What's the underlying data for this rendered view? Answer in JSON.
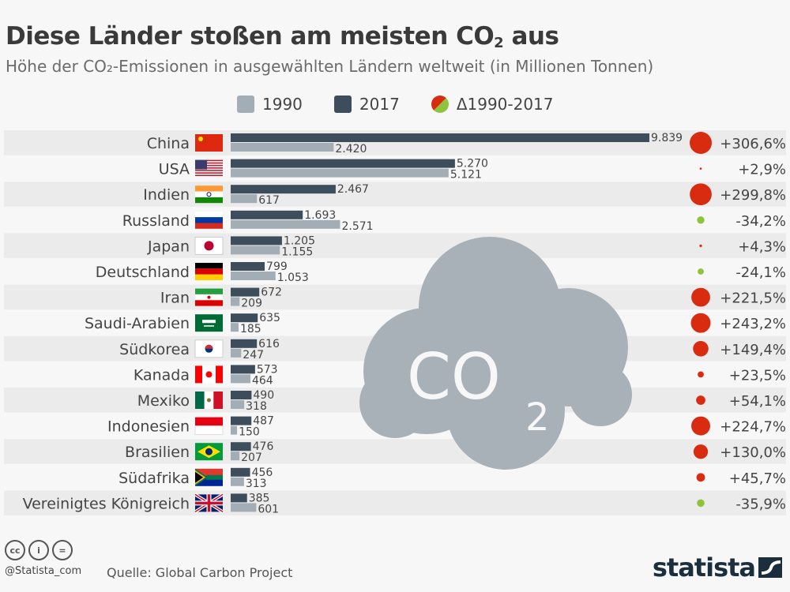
{
  "header": {
    "title_main": "Diese Länder stoßen am meisten CO",
    "title_sub": "2",
    "title_end": " aus",
    "subtitle": "Höhe der CO₂-Emissionen in ausgewählten Ländern weltweit (in Millionen Tonnen)"
  },
  "colors": {
    "y1990": "#a3adb6",
    "y2017": "#3d4d5c",
    "increase": "#d92b10",
    "decrease": "#8dc43c",
    "row_shade": "#ebebeb",
    "cloud": "#a8b0b8"
  },
  "cloud_label": {
    "main": "CO",
    "sub": "2"
  },
  "chart_data": {
    "type": "bar",
    "orientation": "horizontal",
    "legend": [
      "1990",
      "2017",
      "Δ1990-2017"
    ],
    "legend_placement": "top",
    "categories": [
      "China",
      "USA",
      "Indien",
      "Russland",
      "Japan",
      "Deutschland",
      "Iran",
      "Saudi-Arabien",
      "Südkorea",
      "Kanada",
      "Mexiko",
      "Indonesien",
      "Brasilien",
      "Südafrika",
      "Vereinigtes Königreich"
    ],
    "flags": [
      "flag-china",
      "flag-usa",
      "flag-india",
      "flag-russia",
      "flag-japan",
      "flag-germany",
      "flag-iran",
      "flag-saudi-arabia",
      "flag-south-korea",
      "flag-canada",
      "flag-mexico",
      "flag-indonesia",
      "flag-brazil",
      "flag-south-africa",
      "flag-uk"
    ],
    "series": [
      {
        "name": "2017",
        "values": [
          9839,
          5270,
          2467,
          1693,
          1205,
          799,
          672,
          635,
          616,
          573,
          490,
          487,
          476,
          456,
          385
        ],
        "labels": [
          "9.839",
          "5.270",
          "2.467",
          "1.693",
          "1.205",
          "799",
          "672",
          "635",
          "616",
          "573",
          "490",
          "487",
          "476",
          "456",
          "385"
        ]
      },
      {
        "name": "1990",
        "values": [
          2420,
          5121,
          617,
          2571,
          1155,
          1053,
          209,
          185,
          247,
          464,
          318,
          150,
          207,
          313,
          601
        ],
        "labels": [
          "2.420",
          "5.121",
          "617",
          "2.571",
          "1.155",
          "1.053",
          "209",
          "185",
          "247",
          "464",
          "318",
          "150",
          "207",
          "313",
          "601"
        ]
      }
    ],
    "change": {
      "name": "Δ1990-2017",
      "values": [
        306.6,
        2.9,
        299.8,
        -34.2,
        4.3,
        -24.1,
        221.5,
        243.2,
        149.4,
        23.5,
        54.1,
        224.7,
        130.0,
        45.7,
        -35.9
      ],
      "labels": [
        "+306,6%",
        "+2,9%",
        "+299,8%",
        "-34,2%",
        "+4,3%",
        "-24,1%",
        "+221,5%",
        "+243,2%",
        "+149,4%",
        "+23,5%",
        "+54,1%",
        "+224,7%",
        "+130,0%",
        "+45,7%",
        "-35,9%"
      ]
    },
    "xlim": [
      0,
      9839
    ],
    "grid": false
  },
  "footer": {
    "handle": "@Statista_com",
    "source": "Quelle: Global Carbon Project",
    "logo": "statista",
    "cc": [
      "cc",
      "i",
      "="
    ]
  }
}
